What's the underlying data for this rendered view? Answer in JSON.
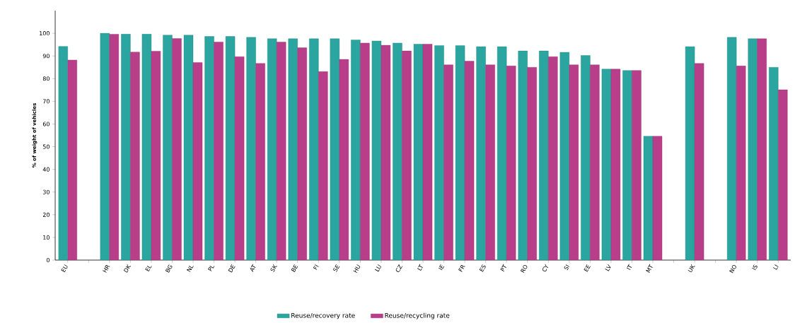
{
  "chart_data": {
    "type": "bar",
    "ylabel": "% of weight of vehicles",
    "categories": [
      "EU",
      null,
      "HR",
      "DK",
      "EL",
      "BG",
      "NL",
      "PL",
      "DE",
      "AT",
      "SK",
      "BE",
      "FI",
      "SE",
      "HU",
      "LU",
      "CZ",
      "LT",
      "IE",
      "FR",
      "ES",
      "PT",
      "RO",
      "CY",
      "SI",
      "EE",
      "LV",
      "IT",
      "MT",
      null,
      "UK",
      null,
      "NO",
      "IS",
      "LI"
    ],
    "series": [
      {
        "name": "Reuse/recovery rate",
        "color": "#2aa5a0",
        "values": [
          94.2,
          null,
          100,
          99.6,
          99.6,
          99.2,
          99.2,
          98.6,
          98.6,
          98.2,
          97.6,
          97.6,
          97.6,
          97.6,
          97.1,
          96.6,
          95.7,
          95.2,
          94.6,
          94.6,
          94.1,
          94.1,
          92.2,
          92.2,
          91.6,
          90.2,
          84.2,
          83.6,
          54.6,
          null,
          94.1,
          null,
          98.2,
          97.6,
          85.0
        ]
      },
      {
        "name": "Reuse/recycling rate",
        "color": "#b83e8a",
        "values": [
          88.2,
          null,
          99.6,
          91.7,
          92.1,
          97.7,
          87.1,
          96.1,
          89.7,
          86.7,
          96.1,
          93.6,
          83.1,
          88.5,
          95.7,
          94.7,
          92.2,
          95.2,
          86.1,
          87.7,
          86.1,
          85.6,
          85.0,
          89.7,
          86.1,
          86.1,
          84.2,
          83.6,
          54.6,
          null,
          86.7,
          null,
          85.6,
          97.6,
          75.1
        ]
      }
    ],
    "ylim": [
      0,
      110
    ],
    "yticks": [
      0,
      10,
      20,
      30,
      40,
      50,
      60,
      70,
      80,
      90,
      100
    ],
    "grid": false,
    "legend": "bottom"
  }
}
